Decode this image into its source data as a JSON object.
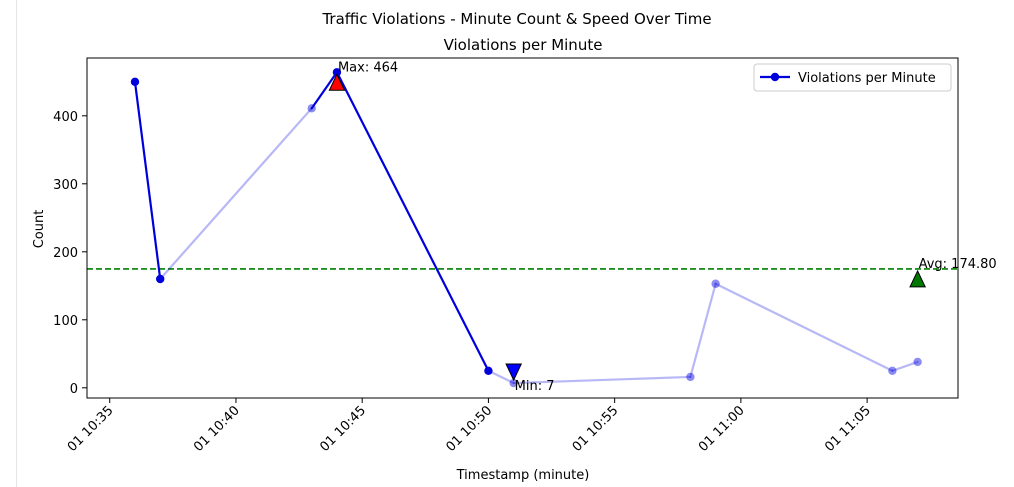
{
  "figure": {
    "suptitle": "Traffic Violations - Minute Count & Speed Over Time"
  },
  "chart_data": {
    "type": "line",
    "title": "Violations per Minute",
    "xlabel": "Timestamp (minute)",
    "ylabel": "Count",
    "x_ticks": [
      "01 10:35",
      "01 10:40",
      "01 10:45",
      "01 10:50",
      "01 10:55",
      "01 11:00",
      "01 11:05"
    ],
    "y_ticks": [
      0,
      100,
      200,
      300,
      400
    ],
    "ylim": [
      -15,
      485
    ],
    "xlim": [
      "10:34.1",
      "11:08.6"
    ],
    "grid": false,
    "legend": "top-right",
    "series": [
      {
        "name": "Violations per Minute",
        "color": "#0000dd",
        "marker": "circle",
        "points": [
          {
            "x": "10:36",
            "y": 450
          },
          {
            "x": "10:37",
            "y": 160
          },
          {
            "x": "10:43",
            "y": 411
          },
          {
            "x": "10:44",
            "y": 464
          },
          {
            "x": "10:50",
            "y": 25
          },
          {
            "x": "10:51",
            "y": 7
          },
          {
            "x": "10:58",
            "y": 16
          },
          {
            "x": "10:59",
            "y": 153
          },
          {
            "x": "11:06",
            "y": 25
          },
          {
            "x": "11:07",
            "y": 38
          }
        ]
      }
    ],
    "reference_line": {
      "label": "Avg: 174.80",
      "value": 174.8,
      "color": "#008000",
      "style": "dashed"
    },
    "annotations": [
      {
        "text": "Max: 464",
        "x": "10:44",
        "y": 464,
        "marker": "triangle-up",
        "color": "#ff0000"
      },
      {
        "text": "Min: 7",
        "x": "10:51",
        "y": 7,
        "marker": "triangle-down",
        "color": "#0000ff"
      },
      {
        "text": "Avg: 174.80",
        "x": "11:07",
        "y": 174.8,
        "marker": "triangle-up",
        "color": "#007700"
      }
    ]
  }
}
